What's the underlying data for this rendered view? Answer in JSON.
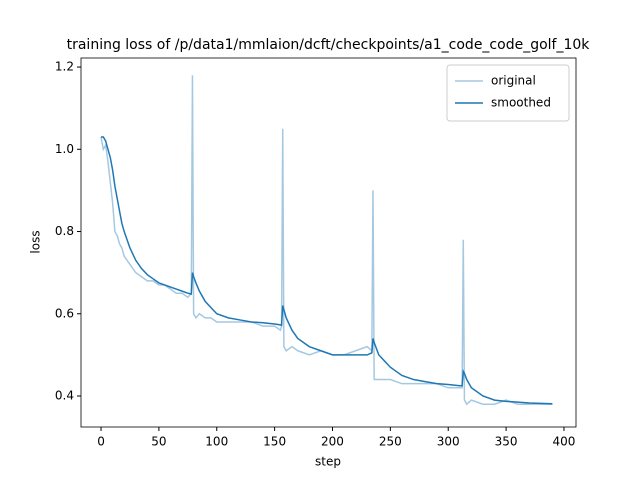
{
  "chart_data": {
    "type": "line",
    "title": "training loss of /p/data1/mmlaion/dcft/checkpoints/a1_code_code_golf_10k",
    "x_label": "step",
    "y_label": "loss",
    "x": [
      0,
      2,
      4,
      6,
      8,
      10,
      12,
      14,
      16,
      18,
      20,
      25,
      30,
      35,
      40,
      45,
      50,
      55,
      60,
      65,
      70,
      75,
      78,
      79,
      80,
      82,
      85,
      90,
      95,
      100,
      110,
      120,
      130,
      140,
      150,
      155,
      156,
      157,
      158,
      160,
      165,
      170,
      180,
      190,
      200,
      210,
      220,
      230,
      234,
      235,
      236,
      240,
      250,
      260,
      270,
      280,
      290,
      300,
      310,
      312,
      313,
      314,
      316,
      320,
      330,
      340,
      350,
      360,
      370,
      380,
      390
    ],
    "series": [
      {
        "name": "original",
        "color": "#a5c8e1",
        "values": [
          1.03,
          1.0,
          1.01,
          0.97,
          0.92,
          0.87,
          0.8,
          0.79,
          0.77,
          0.76,
          0.74,
          0.72,
          0.7,
          0.69,
          0.68,
          0.68,
          0.67,
          0.67,
          0.66,
          0.65,
          0.65,
          0.64,
          0.65,
          1.18,
          0.6,
          0.59,
          0.6,
          0.59,
          0.59,
          0.58,
          0.58,
          0.58,
          0.58,
          0.57,
          0.57,
          0.56,
          0.57,
          1.05,
          0.52,
          0.51,
          0.52,
          0.51,
          0.5,
          0.51,
          0.5,
          0.5,
          0.51,
          0.52,
          0.51,
          0.9,
          0.44,
          0.44,
          0.44,
          0.43,
          0.43,
          0.43,
          0.43,
          0.42,
          0.42,
          0.42,
          0.78,
          0.39,
          0.38,
          0.39,
          0.38,
          0.38,
          0.39,
          0.38,
          0.38,
          0.38,
          0.38
        ]
      },
      {
        "name": "smoothed",
        "color": "#1f77b4",
        "values": [
          1.03,
          1.03,
          1.02,
          1.0,
          0.98,
          0.95,
          0.91,
          0.88,
          0.85,
          0.82,
          0.8,
          0.76,
          0.73,
          0.71,
          0.695,
          0.685,
          0.675,
          0.67,
          0.665,
          0.66,
          0.655,
          0.65,
          0.648,
          0.7,
          0.69,
          0.675,
          0.655,
          0.63,
          0.615,
          0.6,
          0.59,
          0.585,
          0.58,
          0.578,
          0.575,
          0.573,
          0.572,
          0.62,
          0.61,
          0.59,
          0.56,
          0.54,
          0.52,
          0.51,
          0.5,
          0.5,
          0.5,
          0.5,
          0.505,
          0.54,
          0.53,
          0.5,
          0.47,
          0.45,
          0.44,
          0.435,
          0.43,
          0.428,
          0.425,
          0.425,
          0.46,
          0.455,
          0.44,
          0.42,
          0.4,
          0.39,
          0.387,
          0.385,
          0.383,
          0.382,
          0.381
        ]
      }
    ],
    "xlim": [
      -17.3,
      410.4
    ],
    "ylim": [
      0.3246,
      1.222
    ],
    "xticks": [
      0,
      50,
      100,
      150,
      200,
      250,
      300,
      350,
      400
    ],
    "yticks": [
      0.4,
      0.6,
      0.8,
      {
        "value": 1,
        "label": "1.0"
      },
      1.2
    ],
    "legend": "upper right",
    "grid": false
  }
}
